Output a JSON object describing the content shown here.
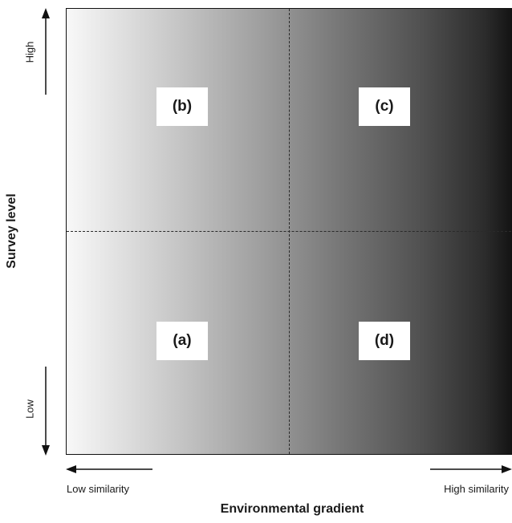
{
  "y_axis": {
    "title": "Survey level",
    "high_label": "High",
    "low_label": "Low"
  },
  "x_axis": {
    "title": "Environmental gradient",
    "low_label": "Low similarity",
    "high_label": "High similarity"
  },
  "quadrants": {
    "top_left": "(b)",
    "top_right": "(c)",
    "bottom_left": "(a)",
    "bottom_right": "(d)"
  },
  "colors": {
    "gradient_light": "#f8f8f8",
    "gradient_dark": "#141414",
    "label_background": "#ffffff",
    "line": "#111111"
  }
}
